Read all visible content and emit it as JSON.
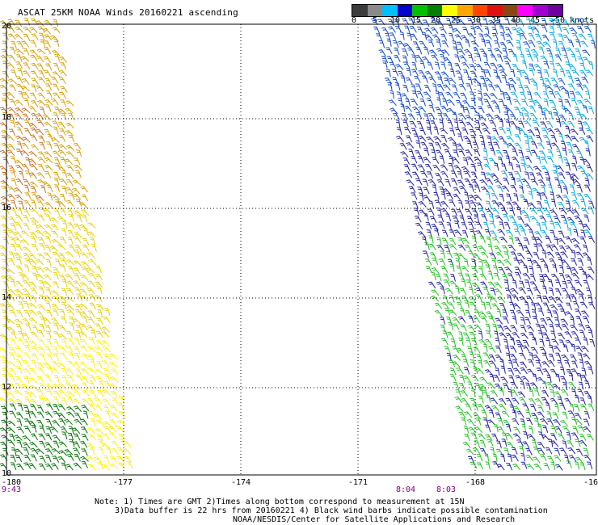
{
  "title": "ASCAT 25KM NOAA Winds 20160221 ascending",
  "colorbar": {
    "colors": [
      "#3c3c3c",
      "#8a8a8a",
      "#00bfff",
      "#0000cd",
      "#00c000",
      "#008000",
      "#ffff00",
      "#ffa500",
      "#ff4500",
      "#e01010",
      "#8b4513",
      "#ff00ff",
      "#a000d0",
      "#7000a0"
    ],
    "labels": [
      "0",
      "5",
      "10",
      "15",
      "20",
      "25",
      "30",
      "35",
      "40",
      "45",
      ">50 knots"
    ]
  },
  "axes": {
    "lat_labels": [
      "20",
      "18",
      "16",
      "14",
      "12",
      "10"
    ],
    "lon_labels": [
      "-180",
      "-177",
      "-174",
      "-171",
      "-168",
      "-16"
    ]
  },
  "pass_times": [
    "9:43",
    "8:04",
    "8:03"
  ],
  "notes": [
    "Note: 1) Times are GMT 2)Times along bottom correspond to measurement at 15N",
    "3)Data buffer is 22 hrs from 20160221 4) Black wind barbs indicate possible contamination",
    "NOAA/NESDIS/Center for Satellite Applications and Research"
  ],
  "wind_colors": {
    "left_north": "#d4a000",
    "left_mid": "#c87020",
    "left_south": "#e8d000",
    "left_far_south": "#ffee00",
    "left_bottom": "#007000",
    "right_north": "#1048c8",
    "right_north_light": "#00a8e0",
    "right_mid": "#2020a0",
    "right_green": "#20c020"
  }
}
